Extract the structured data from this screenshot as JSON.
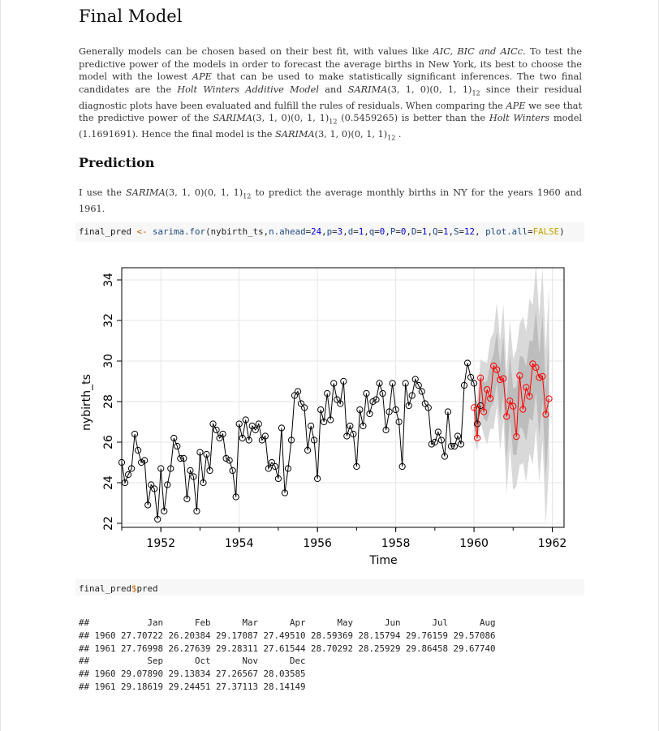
{
  "sections": {
    "final_model_title": "Final Model",
    "prediction_title": "Prediction"
  },
  "final_model_paragraph": [
    {
      "t": "Generally models can be chosen based on their best fit, with values like "
    },
    {
      "t": "AIC, BIC and AICc",
      "i": true
    },
    {
      "t": ". To test the predictive power of the models in order to forecast the average births in New York, its best to choose the model with the lowest "
    },
    {
      "t": "APE",
      "i": true
    },
    {
      "t": " that can be used to make statistically significant inferences. The two final candidates are the "
    },
    {
      "t": "Holt Winters Additive Model",
      "i": true
    },
    {
      "t": " and "
    },
    {
      "t": "SARIMA",
      "i": true
    },
    {
      "t": "(3, 1, 0)(0, 1, 1)"
    },
    {
      "t": "12",
      "sub": true
    },
    {
      "t": " since their residual diagnostic plots have been evaluated and fulfill the rules of residuals. When comparing the "
    },
    {
      "t": "APE",
      "i": true
    },
    {
      "t": " we see that the predictive power of the "
    },
    {
      "t": "SARIMA",
      "i": true
    },
    {
      "t": "(3, 1, 0)(0, 1, 1)"
    },
    {
      "t": "12",
      "sub": true
    },
    {
      "t": " (0.5459265) is better than the "
    },
    {
      "t": "Holt Winters",
      "i": true
    },
    {
      "t": " model (1.1691691). Hence the final model is the "
    },
    {
      "t": "SARIMA",
      "i": true
    },
    {
      "t": "(3, 1, 0)(0, 1, 1)"
    },
    {
      "t": "12",
      "sub": true
    },
    {
      "t": " ."
    }
  ],
  "prediction_paragraph": [
    {
      "t": "I use the "
    },
    {
      "t": "SARIMA",
      "i": true
    },
    {
      "t": "(3, 1, 0)(0, 1, 1)"
    },
    {
      "t": "12",
      "sub": true
    },
    {
      "t": " to predict the average monthly births in NY for the years 1960 and 1961."
    }
  ],
  "code1": [
    {
      "t": "final_pred "
    },
    {
      "t": "<-",
      "c": "op"
    },
    {
      "t": " "
    },
    {
      "t": "sarima.for",
      "c": "kw"
    },
    {
      "t": "(nybirth_ts,"
    },
    {
      "t": "n.ahead",
      "c": "kw"
    },
    {
      "t": "="
    },
    {
      "t": "24",
      "c": "num"
    },
    {
      "t": ","
    },
    {
      "t": "p",
      "c": "kw"
    },
    {
      "t": "="
    },
    {
      "t": "3",
      "c": "num"
    },
    {
      "t": ","
    },
    {
      "t": "d",
      "c": "kw"
    },
    {
      "t": "="
    },
    {
      "t": "1",
      "c": "num"
    },
    {
      "t": ","
    },
    {
      "t": "q",
      "c": "kw"
    },
    {
      "t": "="
    },
    {
      "t": "0",
      "c": "num"
    },
    {
      "t": ","
    },
    {
      "t": "P",
      "c": "kw"
    },
    {
      "t": "="
    },
    {
      "t": "0",
      "c": "num"
    },
    {
      "t": ","
    },
    {
      "t": "D",
      "c": "kw"
    },
    {
      "t": "="
    },
    {
      "t": "1",
      "c": "num"
    },
    {
      "t": ","
    },
    {
      "t": "Q",
      "c": "kw"
    },
    {
      "t": "="
    },
    {
      "t": "1",
      "c": "num"
    },
    {
      "t": ","
    },
    {
      "t": "S",
      "c": "kw"
    },
    {
      "t": "="
    },
    {
      "t": "12",
      "c": "num"
    },
    {
      "t": ", "
    },
    {
      "t": "plot.all",
      "c": "kw"
    },
    {
      "t": "="
    },
    {
      "t": "FALSE",
      "c": "str"
    },
    {
      "t": ")"
    }
  ],
  "code2": [
    {
      "t": "final_pred"
    },
    {
      "t": "$",
      "c": "op"
    },
    {
      "t": "pred"
    }
  ],
  "output_lines": [
    "##           Jan      Feb      Mar      Apr      May      Jun      Jul      Aug",
    "## 1960 27.70722 26.20384 29.17087 27.49510 28.59369 28.15794 29.76159 29.57086",
    "## 1961 27.76998 26.27639 29.28311 27.61544 28.70292 28.25929 29.86458 29.67740",
    "##           Sep      Oct      Nov      Dec",
    "## 1960 29.07890 29.13834 27.26567 28.03585",
    "## 1961 29.18619 29.24451 27.37113 28.14149"
  ],
  "chart_data": {
    "type": "line",
    "xlabel": "Time",
    "ylabel": "nybirth_ts",
    "xlim": [
      1951.0,
      1962.3
    ],
    "ylim": [
      21.8,
      34.6
    ],
    "xticks": [
      1952,
      1954,
      1956,
      1958,
      1960,
      1962
    ],
    "yticks": [
      22,
      24,
      26,
      28,
      30,
      32,
      34
    ],
    "grid": true,
    "colors": {
      "observed": "#000000",
      "forecast": "#ff0000",
      "band_outer": "#d9d9d9",
      "band_inner": "#bdbdbd"
    },
    "observed_start": 1951.0,
    "observed": [
      25.0,
      24.0,
      24.4,
      24.7,
      26.4,
      25.6,
      25.0,
      25.1,
      22.9,
      23.9,
      23.7,
      22.2,
      24.7,
      22.6,
      23.9,
      24.7,
      26.2,
      25.8,
      25.2,
      25.2,
      23.2,
      24.6,
      24.3,
      22.6,
      25.5,
      24.0,
      25.4,
      24.6,
      26.9,
      26.6,
      26.2,
      26.4,
      25.2,
      25.1,
      24.6,
      23.3,
      26.9,
      26.2,
      27.1,
      26.1,
      26.8,
      26.6,
      26.9,
      26.1,
      26.3,
      24.7,
      25.0,
      24.8,
      24.2,
      26.7,
      23.5,
      24.7,
      26.1,
      28.3,
      28.5,
      27.9,
      27.7,
      25.6,
      26.8,
      26.1,
      24.2,
      27.6,
      27.0,
      28.4,
      27.1,
      28.9,
      28.1,
      27.9,
      29.0,
      26.3,
      26.8,
      26.4,
      24.8,
      27.6,
      26.8,
      28.4,
      27.4,
      28.0,
      28.1,
      28.9,
      28.4,
      26.6,
      27.5,
      28.9,
      27.6,
      27.0,
      24.8,
      28.9,
      27.8,
      28.3,
      29.1,
      28.8,
      28.5,
      27.9,
      27.7,
      25.9,
      26.0,
      26.5,
      26.1,
      25.3,
      27.5,
      25.8,
      25.8,
      26.3,
      25.9,
      28.8,
      29.9,
      29.2,
      28.9,
      26.9,
      27.8
    ],
    "forecast_start": 1960.0,
    "forecast": [
      27.70722,
      26.20384,
      29.17087,
      27.4951,
      28.59369,
      28.15794,
      29.76159,
      29.57086,
      29.0789,
      29.13834,
      27.26567,
      28.03585,
      27.76998,
      26.27639,
      29.28311,
      27.61544,
      28.70292,
      28.25929,
      29.86458,
      29.6774,
      29.18619,
      29.24451,
      27.37113,
      28.14149
    ]
  }
}
